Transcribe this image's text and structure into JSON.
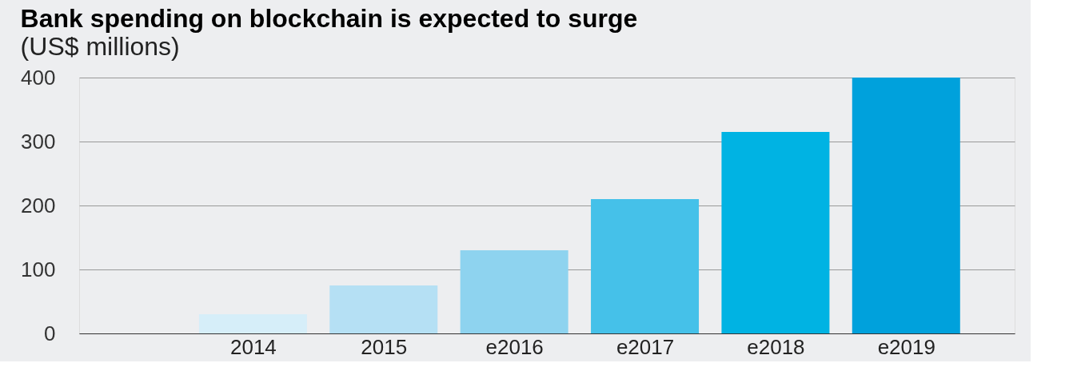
{
  "chart_data": {
    "type": "bar",
    "title": "Bank spending on blockchain is expected to surge",
    "subtitle": "(US$ millions)",
    "categories": [
      "2014",
      "2015",
      "e2016",
      "e2017",
      "e2018",
      "e2019"
    ],
    "values": [
      30,
      75,
      130,
      210,
      315,
      400
    ],
    "colors": [
      "#d6eef9",
      "#b5e0f4",
      "#8ed3ef",
      "#45c1e9",
      "#00b3e3",
      "#00a1dc"
    ],
    "ylim": [
      0,
      400
    ],
    "yticks": [
      0,
      100,
      200,
      300,
      400
    ],
    "grid": "y"
  }
}
